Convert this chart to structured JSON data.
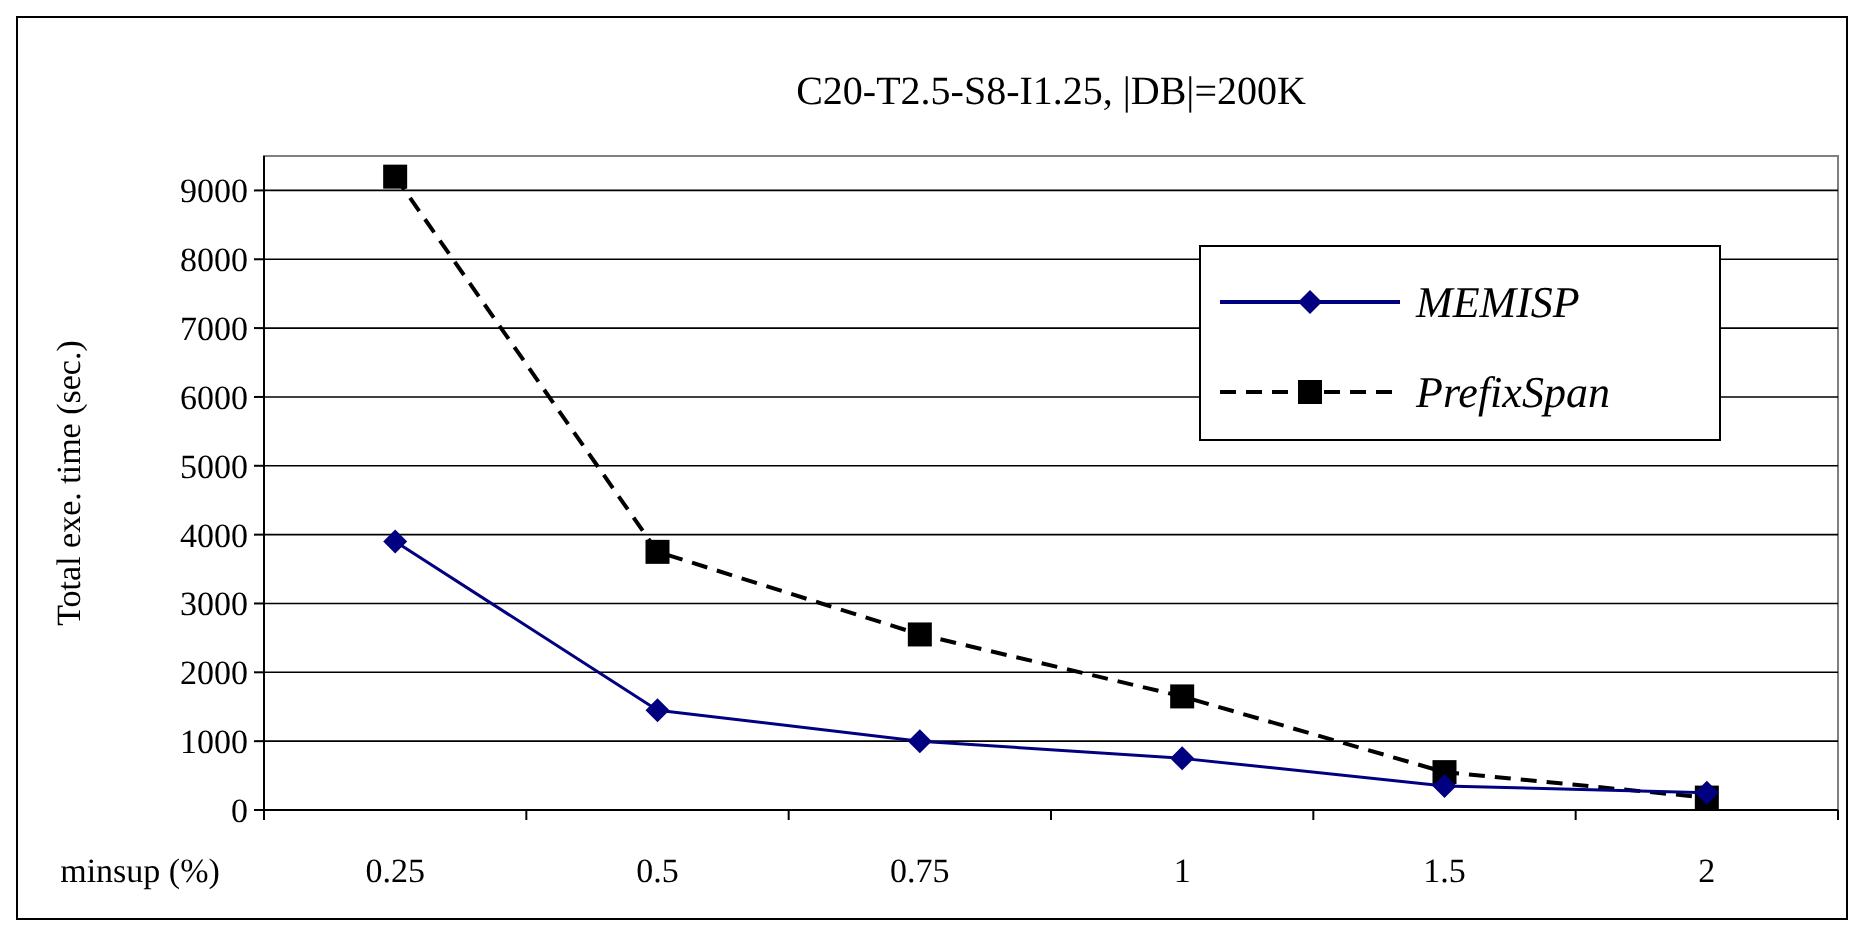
{
  "chart_data": {
    "type": "line",
    "title": "C20-T2.5-S8-I1.25, |DB|=200K",
    "xlabel": "minsup (%)",
    "ylabel": "Total exe. time (sec.)",
    "categories": [
      "0.25",
      "0.5",
      "0.75",
      "1",
      "1.5",
      "2"
    ],
    "series": [
      {
        "name": "MEMISP",
        "color": "#000080",
        "values": [
          3900,
          1450,
          1000,
          750,
          350,
          250
        ],
        "marker": "diamond",
        "line_style": "solid"
      },
      {
        "name": "PrefixSpan",
        "color": "#000000",
        "values": [
          9200,
          3750,
          2550,
          1650,
          550,
          180
        ],
        "marker": "square",
        "line_style": "dashed"
      }
    ],
    "ylim": [
      0,
      9500
    ],
    "yticks": [
      0,
      1000,
      2000,
      3000,
      4000,
      5000,
      6000,
      7000,
      8000,
      9000
    ],
    "grid": "y",
    "legend": "top right"
  }
}
